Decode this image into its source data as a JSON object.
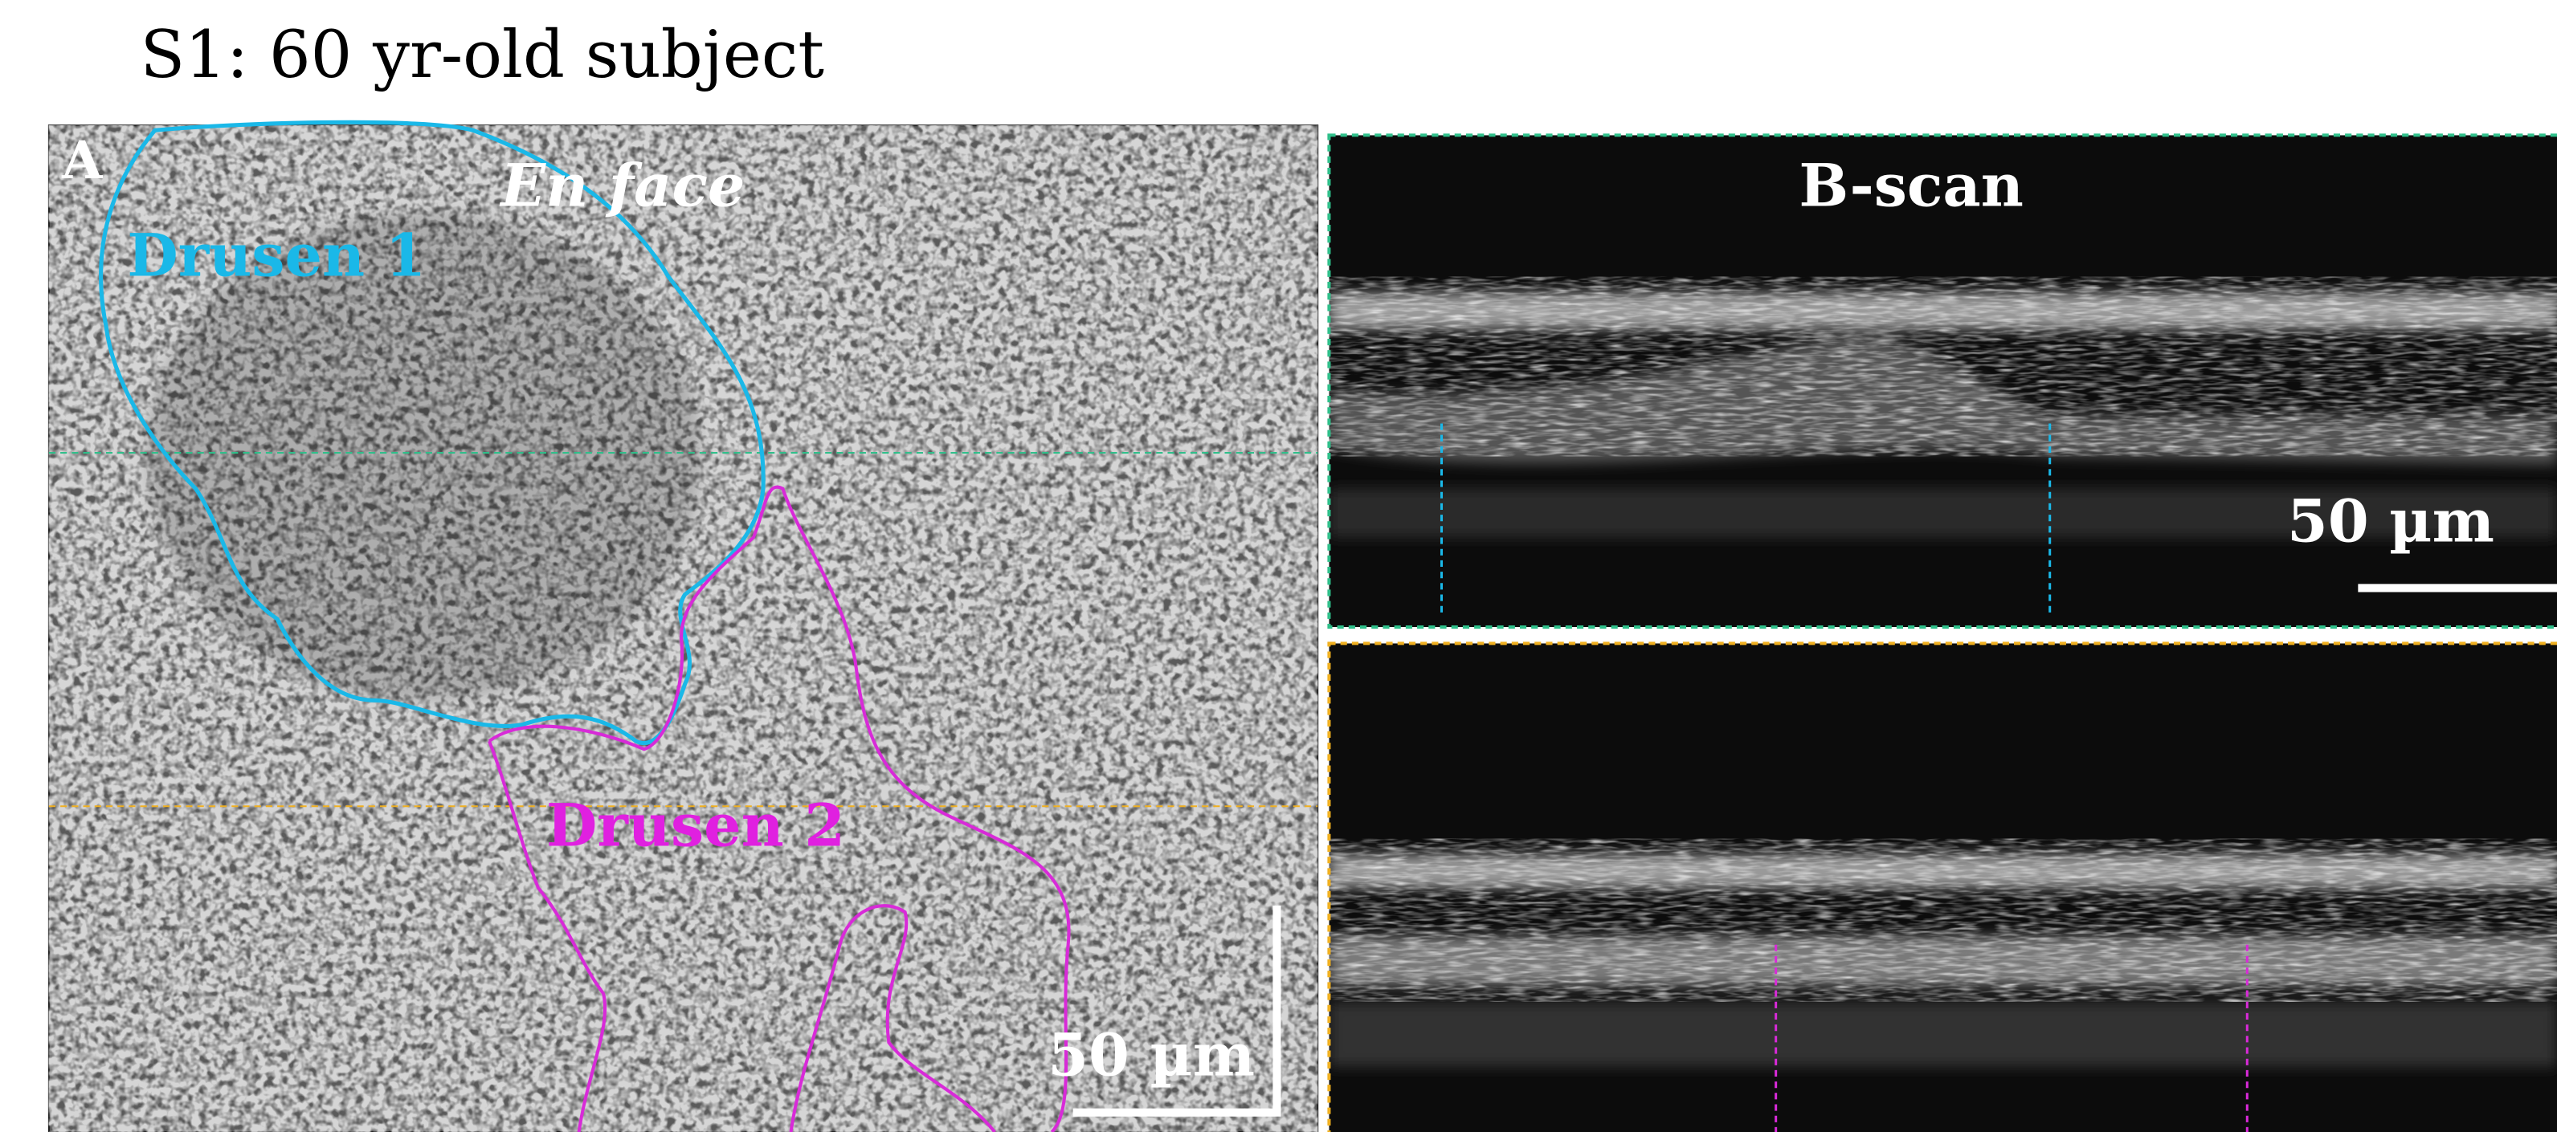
{
  "header": {
    "title": "S1: 60 yr-old subject"
  },
  "en_face": {
    "panel_label": "A",
    "title": "En face",
    "regions": [
      "Drusen 1",
      "Drusen 2"
    ],
    "scale_bar": "50 µm"
  },
  "b_scan": {
    "title": "B-scan",
    "scale_bar": "50 µm"
  }
}
